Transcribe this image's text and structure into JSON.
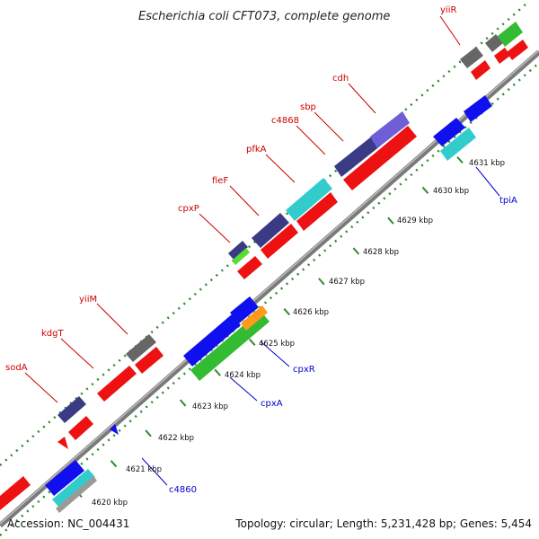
{
  "title": "Escherichia coli CFT073, complete genome",
  "footer": {
    "accession": "Accession: NC_004431",
    "summary": "Topology: circular; Length: 5,231,428 bp; Genes: 5,454"
  },
  "colors": {
    "backbone": "#7f7f7f",
    "dots": "#2e8b2e",
    "tick": "#2e8b2e",
    "label_top": "#cc0000",
    "label_bottom": "#0000cc",
    "blue": "#1010ee",
    "red": "#ee1111",
    "navy": "#3b3b85",
    "gray": "#666666",
    "cyan": "#33cccc",
    "green": "#33bb33",
    "orange": "#ff9a1a",
    "violet": "#6f5fd6"
  },
  "ticks": [
    {
      "label": "4620 kbp"
    },
    {
      "label": "4621 kbp"
    },
    {
      "label": "4622 kbp"
    },
    {
      "label": "4623 kbp"
    },
    {
      "label": "4624 kbp"
    },
    {
      "label": "4625 kbp"
    },
    {
      "label": "4626 kbp"
    },
    {
      "label": "4627 kbp"
    },
    {
      "label": "4628 kbp"
    },
    {
      "label": "4629 kbp"
    },
    {
      "label": "4630 kbp"
    },
    {
      "label": "4631 kbp"
    }
  ],
  "top_labels": [
    {
      "text": "sodA"
    },
    {
      "text": "kdgT"
    },
    {
      "text": "yiiM"
    },
    {
      "text": "cpxP"
    },
    {
      "text": "fieF"
    },
    {
      "text": "pfkA"
    },
    {
      "text": "c4868"
    },
    {
      "text": "sbp"
    },
    {
      "text": "cdh"
    },
    {
      "text": "yiiR"
    }
  ],
  "bottom_labels": [
    {
      "text": "c4860"
    },
    {
      "text": "cpxA"
    },
    {
      "text": "cpxR"
    },
    {
      "text": "tpiA"
    }
  ]
}
